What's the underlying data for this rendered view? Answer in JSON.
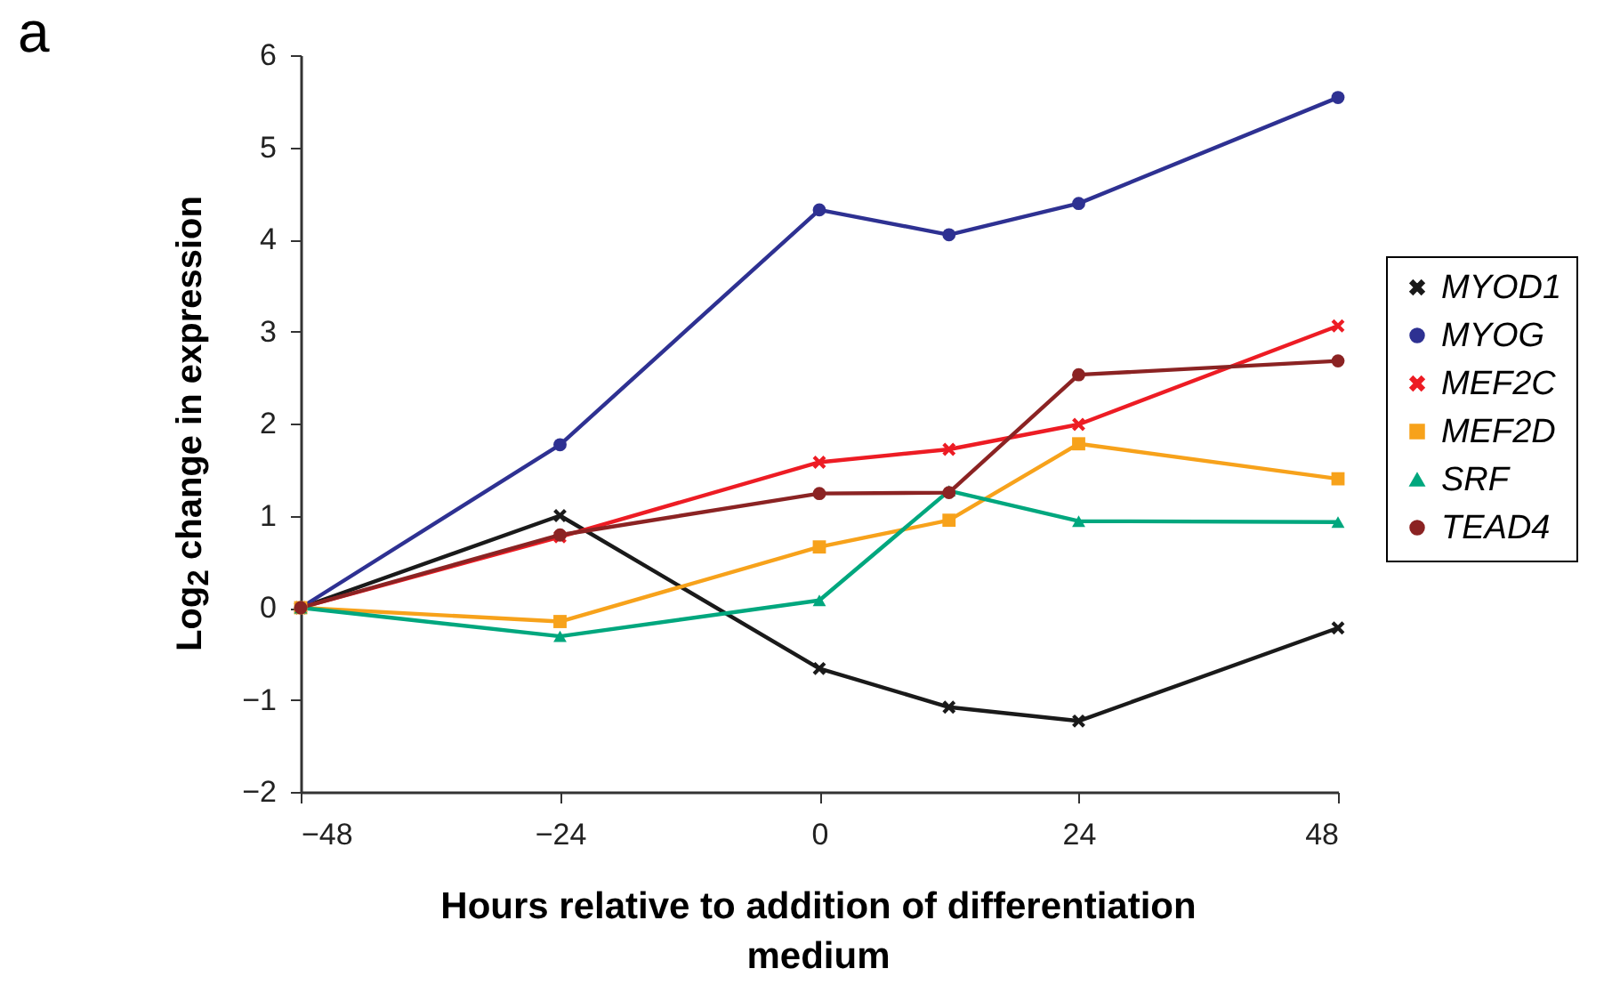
{
  "chart_data": {
    "type": "line",
    "annotations": [
      "a"
    ],
    "xlabel": "Hours relative to addition of differentiation medium",
    "ylabel": "Log$_{2}$ change in expression",
    "x": [
      -48,
      -24,
      0,
      12,
      24,
      48
    ],
    "xlim": [
      -48,
      48
    ],
    "xticks": [
      -48,
      -24,
      0,
      24,
      48
    ],
    "ylim": [
      -2,
      6
    ],
    "yticks": [
      -2,
      -1,
      0,
      1,
      2,
      3,
      4,
      5,
      6
    ],
    "grid": false,
    "legend": "right",
    "series": [
      {
        "name": "MYOD1",
        "color": "#1a1a1a",
        "marker": "cross",
        "values": [
          0,
          1.0,
          -0.66,
          -1.08,
          -1.23,
          -0.22
        ]
      },
      {
        "name": "MYOG",
        "color": "#2e3192",
        "marker": "circle",
        "values": [
          0,
          1.77,
          4.32,
          4.05,
          4.39,
          5.54
        ]
      },
      {
        "name": "MEF2C",
        "color": "#ed1c24",
        "marker": "cross",
        "values": [
          0,
          0.77,
          1.58,
          1.72,
          1.99,
          3.06
        ]
      },
      {
        "name": "MEF2D",
        "color": "#f7a21b",
        "marker": "square",
        "values": [
          0,
          -0.15,
          0.66,
          0.95,
          1.78,
          1.4
        ]
      },
      {
        "name": "SRF",
        "color": "#00a77e",
        "marker": "triangle",
        "values": [
          0,
          -0.31,
          0.08,
          1.27,
          0.94,
          0.93
        ]
      },
      {
        "name": "TEAD4",
        "color": "#8b2323",
        "marker": "circle",
        "values": [
          0,
          0.79,
          1.24,
          1.25,
          2.53,
          2.68
        ]
      }
    ]
  }
}
